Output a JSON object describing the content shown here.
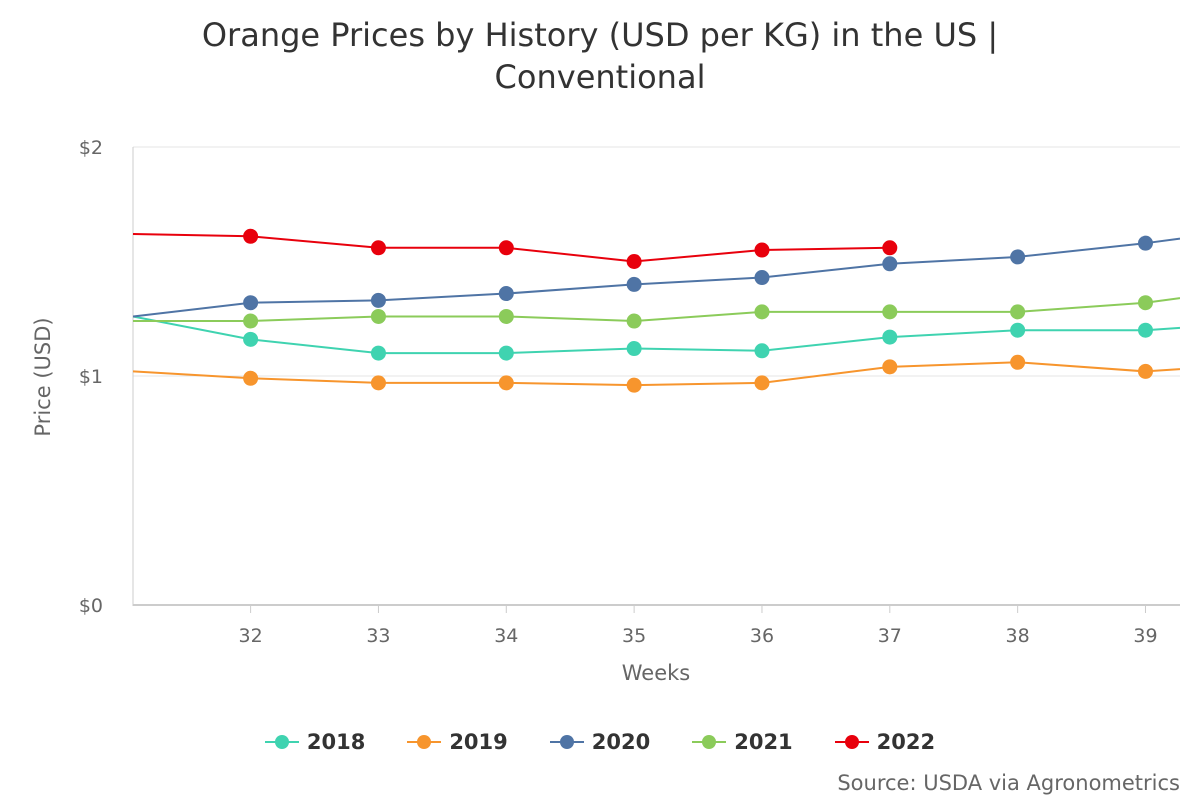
{
  "chart_data": {
    "type": "line",
    "title_line1": "Orange Prices by History (USD per KG) in the US |",
    "title_line2": "Conventional",
    "xlabel": "Weeks",
    "ylabel": "Price (USD)",
    "x": [
      32,
      33,
      34,
      35,
      36,
      37,
      38,
      39
    ],
    "x_visible_range": [
      31.08,
      39.27
    ],
    "ylim": [
      0,
      2
    ],
    "y_ticks": [
      {
        "value": 0,
        "label": "$0"
      },
      {
        "value": 1,
        "label": "$1"
      },
      {
        "value": 2,
        "label": "$2"
      }
    ],
    "grid": true,
    "legend_position": "bottom",
    "series": [
      {
        "name": "2018",
        "color": "#3fd3b0",
        "edge_left": 1.26,
        "edge_right": 1.21,
        "values": [
          1.16,
          1.1,
          1.1,
          1.12,
          1.11,
          1.17,
          1.2,
          1.2
        ]
      },
      {
        "name": "2019",
        "color": "#f7952d",
        "edge_left": 1.02,
        "edge_right": 1.03,
        "values": [
          0.99,
          0.97,
          0.97,
          0.96,
          0.97,
          1.04,
          1.06,
          1.02
        ]
      },
      {
        "name": "2020",
        "color": "#4f74a5",
        "edge_left": 1.26,
        "edge_right": 1.6,
        "values": [
          1.32,
          1.33,
          1.36,
          1.4,
          1.43,
          1.49,
          1.52,
          1.58
        ]
      },
      {
        "name": "2021",
        "color": "#8bcb5a",
        "edge_left": 1.24,
        "edge_right": 1.34,
        "values": [
          1.24,
          1.26,
          1.26,
          1.24,
          1.28,
          1.28,
          1.28,
          1.32
        ]
      },
      {
        "name": "2022",
        "color": "#e8000c",
        "edge_left": 1.62,
        "edge_right": null,
        "values": [
          1.61,
          1.56,
          1.56,
          1.5,
          1.55,
          1.56,
          null,
          null
        ]
      }
    ]
  },
  "source": "Source: USDA via Agronometrics"
}
